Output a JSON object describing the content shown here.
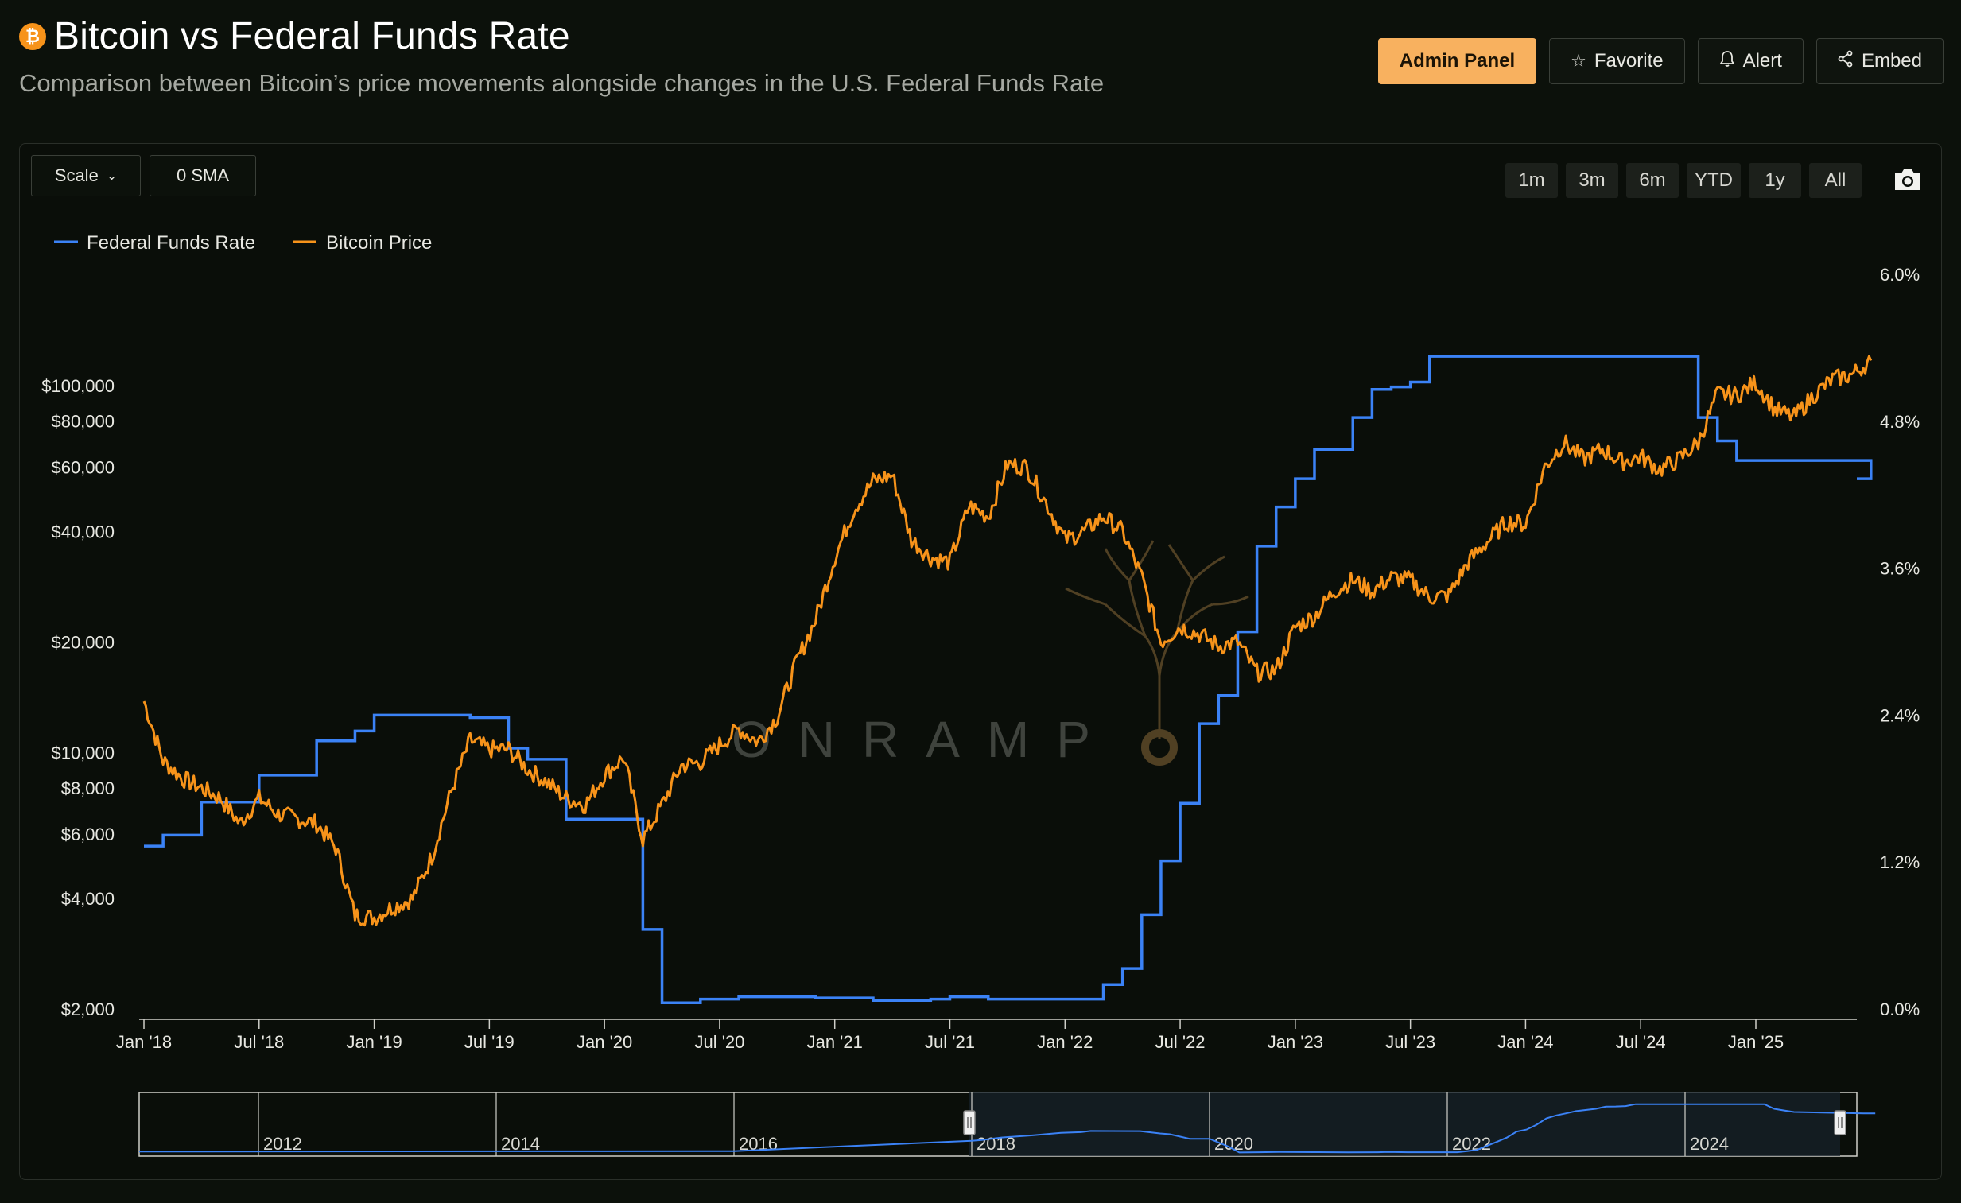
{
  "header": {
    "logo_glyph": "₿",
    "title": "Bitcoin vs Federal Funds Rate",
    "subtitle": "Comparison between Bitcoin’s price movements alongside changes in the U.S. Federal Funds Rate",
    "buttons": {
      "admin": "Admin Panel",
      "favorite": "Favorite",
      "alert": "Alert",
      "embed": "Embed"
    },
    "icons": {
      "favorite": "star-icon",
      "alert": "bell-icon",
      "embed": "share-icon"
    }
  },
  "toolbar": {
    "scale_label": "Scale",
    "sma_label": "0 SMA",
    "ranges": [
      "1m",
      "3m",
      "6m",
      "YTD",
      "1y",
      "All"
    ],
    "screenshot_icon": "camera-icon"
  },
  "watermark": "ONRAMP",
  "colors": {
    "fed_rate": "#3b82f6",
    "bitcoin": "#f7931a",
    "admin_button": "#f8b15f",
    "background": "#0c110b"
  },
  "chart_data": {
    "type": "line",
    "legend": [
      "Federal Funds Rate",
      "Bitcoin Price"
    ],
    "legend_position": "top-left",
    "x_tick_labels": [
      "Jan '18",
      "Jul '18",
      "Jan '19",
      "Jul '19",
      "Jan '20",
      "Jul '20",
      "Jan '21",
      "Jul '21",
      "Jan '22",
      "Jul '22",
      "Jan '23",
      "Jul '23",
      "Jan '24",
      "Jul '24",
      "Jan '25"
    ],
    "x_range": [
      "2018-01",
      "2025-07"
    ],
    "left_axis": {
      "scale": "log",
      "tick_labels": [
        "$100,000",
        "$80,000",
        "$60,000",
        "$40,000",
        "$20,000",
        "$10,000",
        "$8,000",
        "$6,000",
        "$4,000",
        "$2,000"
      ],
      "tick_values": [
        100000,
        80000,
        60000,
        40000,
        20000,
        10000,
        8000,
        6000,
        4000,
        2000
      ],
      "range": [
        2000,
        100000
      ]
    },
    "right_axis": {
      "tick_labels": [
        "6.0%",
        "4.8%",
        "3.6%",
        "2.4%",
        "1.2%",
        "0.0%"
      ],
      "tick_values": [
        6.0,
        4.8,
        3.6,
        2.4,
        1.2,
        0.0
      ],
      "range": [
        0,
        6.0
      ]
    },
    "grid": false,
    "series": [
      {
        "name": "Federal Funds Rate",
        "axis": "right",
        "step": true,
        "points": [
          [
            "2018-01",
            1.33
          ],
          [
            "2018-02",
            1.42
          ],
          [
            "2018-04",
            1.69
          ],
          [
            "2018-07",
            1.91
          ],
          [
            "2018-10",
            2.19
          ],
          [
            "2018-12",
            2.27
          ],
          [
            "2019-01",
            2.4
          ],
          [
            "2019-06",
            2.38
          ],
          [
            "2019-08",
            2.13
          ],
          [
            "2019-09",
            2.04
          ],
          [
            "2019-11",
            1.55
          ],
          [
            "2020-01",
            1.55
          ],
          [
            "2020-03",
            0.65
          ],
          [
            "2020-04",
            0.05
          ],
          [
            "2020-06",
            0.08
          ],
          [
            "2020-08",
            0.1
          ],
          [
            "2020-12",
            0.09
          ],
          [
            "2021-03",
            0.07
          ],
          [
            "2021-06",
            0.08
          ],
          [
            "2021-07",
            0.1
          ],
          [
            "2021-09",
            0.08
          ],
          [
            "2022-02",
            0.08
          ],
          [
            "2022-03",
            0.2
          ],
          [
            "2022-04",
            0.33
          ],
          [
            "2022-05",
            0.77
          ],
          [
            "2022-06",
            1.21
          ],
          [
            "2022-07",
            1.68
          ],
          [
            "2022-08",
            2.33
          ],
          [
            "2022-09",
            2.56
          ],
          [
            "2022-10",
            3.08
          ],
          [
            "2022-11",
            3.78
          ],
          [
            "2022-12",
            4.1
          ],
          [
            "2023-01",
            4.33
          ],
          [
            "2023-02",
            4.57
          ],
          [
            "2023-04",
            4.83
          ],
          [
            "2023-05",
            5.06
          ],
          [
            "2023-06",
            5.08
          ],
          [
            "2023-07",
            5.12
          ],
          [
            "2023-08",
            5.33
          ],
          [
            "2024-09",
            5.33
          ],
          [
            "2024-10",
            4.83
          ],
          [
            "2024-11",
            4.64
          ],
          [
            "2024-12",
            4.48
          ],
          [
            "2025-07",
            4.33
          ]
        ]
      },
      {
        "name": "Bitcoin Price",
        "axis": "left",
        "points": [
          [
            "2018-01",
            13800
          ],
          [
            "2018-02",
            9500
          ],
          [
            "2018-03",
            8500
          ],
          [
            "2018-04",
            8000
          ],
          [
            "2018-05",
            7500
          ],
          [
            "2018-06",
            6400
          ],
          [
            "2018-07",
            7500
          ],
          [
            "2018-08",
            6800
          ],
          [
            "2018-09",
            6600
          ],
          [
            "2018-10",
            6400
          ],
          [
            "2018-11",
            5500
          ],
          [
            "2018-12",
            3600
          ],
          [
            "2019-01",
            3550
          ],
          [
            "2019-02",
            3800
          ],
          [
            "2019-03",
            4000
          ],
          [
            "2019-04",
            5200
          ],
          [
            "2019-05",
            7800
          ],
          [
            "2019-06",
            10800
          ],
          [
            "2019-07",
            10200
          ],
          [
            "2019-08",
            10200
          ],
          [
            "2019-09",
            9000
          ],
          [
            "2019-10",
            8300
          ],
          [
            "2019-11",
            7500
          ],
          [
            "2019-12",
            7200
          ],
          [
            "2020-01",
            8700
          ],
          [
            "2020-02",
            9700
          ],
          [
            "2020-03",
            5800
          ],
          [
            "2020-04",
            7200
          ],
          [
            "2020-05",
            9200
          ],
          [
            "2020-06",
            9400
          ],
          [
            "2020-07",
            10500
          ],
          [
            "2020-08",
            11600
          ],
          [
            "2020-09",
            10700
          ],
          [
            "2020-10",
            12500
          ],
          [
            "2020-11",
            17600
          ],
          [
            "2020-12",
            23000
          ],
          [
            "2021-01",
            34000
          ],
          [
            "2021-02",
            46000
          ],
          [
            "2021-03",
            55000
          ],
          [
            "2021-04",
            57000
          ],
          [
            "2021-05",
            38000
          ],
          [
            "2021-06",
            34000
          ],
          [
            "2021-07",
            33000
          ],
          [
            "2021-08",
            47000
          ],
          [
            "2021-09",
            44000
          ],
          [
            "2021-10",
            61000
          ],
          [
            "2021-11",
            60000
          ],
          [
            "2021-12",
            48000
          ],
          [
            "2022-01",
            38000
          ],
          [
            "2022-02",
            40000
          ],
          [
            "2022-03",
            44000
          ],
          [
            "2022-04",
            40000
          ],
          [
            "2022-05",
            30000
          ],
          [
            "2022-06",
            20000
          ],
          [
            "2022-07",
            22000
          ],
          [
            "2022-08",
            21000
          ],
          [
            "2022-09",
            19500
          ],
          [
            "2022-10",
            20000
          ],
          [
            "2022-11",
            16500
          ],
          [
            "2022-12",
            16800
          ],
          [
            "2023-01",
            22000
          ],
          [
            "2023-02",
            23500
          ],
          [
            "2023-03",
            27500
          ],
          [
            "2023-04",
            29500
          ],
          [
            "2023-05",
            27500
          ],
          [
            "2023-06",
            30000
          ],
          [
            "2023-07",
            29500
          ],
          [
            "2023-08",
            26500
          ],
          [
            "2023-09",
            26800
          ],
          [
            "2023-10",
            33000
          ],
          [
            "2023-11",
            37500
          ],
          [
            "2023-12",
            42500
          ],
          [
            "2024-01",
            42000
          ],
          [
            "2024-02",
            60000
          ],
          [
            "2024-03",
            70000
          ],
          [
            "2024-04",
            63000
          ],
          [
            "2024-05",
            67000
          ],
          [
            "2024-06",
            62000
          ],
          [
            "2024-07",
            64000
          ],
          [
            "2024-08",
            59000
          ],
          [
            "2024-09",
            63000
          ],
          [
            "2024-10",
            70000
          ],
          [
            "2024-11",
            95000
          ],
          [
            "2024-12",
            94000
          ],
          [
            "2025-01",
            102000
          ],
          [
            "2025-02",
            86000
          ],
          [
            "2025-03",
            82000
          ],
          [
            "2025-04",
            94000
          ],
          [
            "2025-05",
            104000
          ],
          [
            "2025-06",
            107000
          ],
          [
            "2025-07",
            117000
          ]
        ]
      }
    ],
    "navigator": {
      "x_tick_labels": [
        "2012",
        "2014",
        "2016",
        "2018",
        "2020",
        "2022",
        "2024"
      ]
    }
  }
}
